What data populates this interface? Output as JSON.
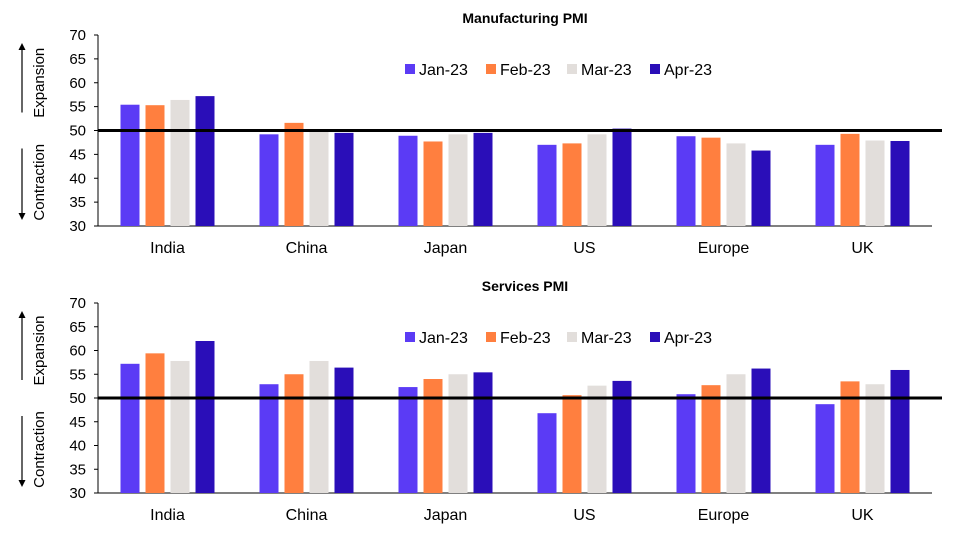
{
  "chart_data": [
    {
      "type": "bar",
      "title": "Manufacturing PMI",
      "categories": [
        "India",
        "China",
        "Japan",
        "US",
        "Europe",
        "UK"
      ],
      "series": [
        {
          "name": "Jan-23",
          "color": "#5B3BF5",
          "values": [
            55.4,
            49.2,
            48.9,
            47.0,
            48.8,
            47.0
          ]
        },
        {
          "name": "Feb-23",
          "color": "#FF7F3F",
          "values": [
            55.3,
            51.6,
            47.7,
            47.3,
            48.5,
            49.3
          ]
        },
        {
          "name": "Mar-23",
          "color": "#E2DEDB",
          "values": [
            56.4,
            50.0,
            49.2,
            49.2,
            47.3,
            47.9
          ]
        },
        {
          "name": "Apr-23",
          "color": "#2A0EB8",
          "values": [
            57.2,
            49.5,
            49.5,
            50.4,
            45.8,
            47.8
          ]
        }
      ],
      "ylim": [
        30,
        70
      ],
      "yticks": [
        30,
        35,
        40,
        45,
        50,
        55,
        60,
        65,
        70
      ],
      "reference_line": 50,
      "upper_label": "Expansion",
      "lower_label": "Contraction",
      "legend_position": "top-center"
    },
    {
      "type": "bar",
      "title": "Services PMI",
      "categories": [
        "India",
        "China",
        "Japan",
        "US",
        "Europe",
        "UK"
      ],
      "series": [
        {
          "name": "Jan-23",
          "color": "#5B3BF5",
          "values": [
            57.2,
            52.9,
            52.3,
            46.8,
            50.8,
            48.7
          ]
        },
        {
          "name": "Feb-23",
          "color": "#FF7F3F",
          "values": [
            59.4,
            55.0,
            54.0,
            50.6,
            52.7,
            53.5
          ]
        },
        {
          "name": "Mar-23",
          "color": "#E2DEDB",
          "values": [
            57.8,
            57.8,
            55.0,
            52.6,
            55.0,
            52.9
          ]
        },
        {
          "name": "Apr-23",
          "color": "#2A0EB8",
          "values": [
            62.0,
            56.4,
            55.4,
            53.6,
            56.2,
            55.9
          ]
        }
      ],
      "ylim": [
        30,
        70
      ],
      "yticks": [
        30,
        35,
        40,
        45,
        50,
        55,
        60,
        65,
        70
      ],
      "reference_line": 50,
      "upper_label": "Expansion",
      "lower_label": "Contraction",
      "legend_position": "top-center"
    }
  ]
}
